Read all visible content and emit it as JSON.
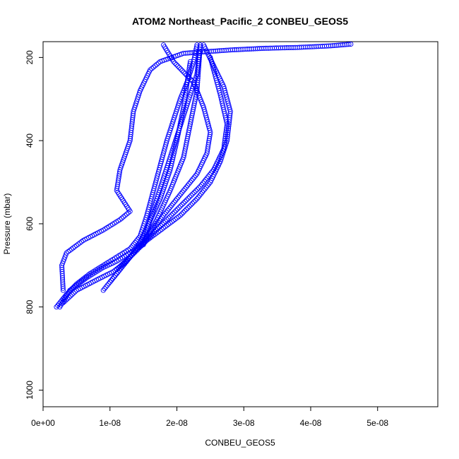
{
  "chart_data": {
    "type": "scatter",
    "title": "ATOM2 Northeast_Pacific_2 CONBEU_GEOS5",
    "xlabel": "CONBEU_GEOS5",
    "ylabel": "Pressure (mbar)",
    "xlim": [
      0,
      5.9e-08
    ],
    "ylim": [
      1040,
      162
    ],
    "y_reversed": true,
    "grid": false,
    "x_ticks": [
      {
        "value": 0,
        "label": "0e+00"
      },
      {
        "value": 1e-08,
        "label": "1e-08"
      },
      {
        "value": 2e-08,
        "label": "2e-08"
      },
      {
        "value": 3e-08,
        "label": "3e-08"
      },
      {
        "value": 4e-08,
        "label": "4e-08"
      },
      {
        "value": 5e-08,
        "label": "5e-08"
      }
    ],
    "y_ticks": [
      {
        "value": 200,
        "label": "200"
      },
      {
        "value": 400,
        "label": "400"
      },
      {
        "value": 600,
        "label": "600"
      },
      {
        "value": 800,
        "label": "800"
      },
      {
        "value": 1000,
        "label": "1000"
      }
    ],
    "marker": "open-circle",
    "color": "#0000ff",
    "series": [
      {
        "x": [
          2e-09,
          3.5e-09,
          5e-09,
          7e-09,
          9e-09,
          1.1e-08,
          1.3e-08,
          1.45e-08,
          1.55e-08,
          1.65e-08,
          1.75e-08,
          1.85e-08,
          1.95e-08,
          2.05e-08,
          2.15e-08,
          2.25e-08,
          2.3e-08
        ],
        "y": [
          800,
          770,
          745,
          720,
          700,
          680,
          660,
          630,
          580,
          520,
          460,
          400,
          350,
          300,
          260,
          210,
          170
        ]
      },
      {
        "x": [
          2.5e-09,
          4e-09,
          6.5e-09,
          9e-09,
          1.1e-08,
          1.3e-08,
          1.5e-08,
          1.7e-08,
          1.9e-08,
          2.1e-08,
          2.2e-08,
          2.3e-08,
          2.35e-08
        ],
        "y": [
          800,
          760,
          730,
          705,
          690,
          670,
          650,
          590,
          520,
          440,
          360,
          280,
          170
        ]
      },
      {
        "x": [
          3e-09,
          5e-09,
          8e-09,
          1.05e-08,
          1.25e-08,
          1.4e-08,
          1.55e-08,
          1.75e-08,
          1.9e-08,
          2e-08,
          2.1e-08,
          2.2e-08
        ],
        "y": [
          790,
          760,
          735,
          715,
          690,
          660,
          610,
          540,
          470,
          400,
          320,
          210
        ]
      },
      {
        "x": [
          9e-09,
          1.1e-08,
          1.3e-08,
          1.55e-08,
          1.8e-08,
          2.05e-08,
          2.3e-08,
          2.5e-08,
          2.65e-08,
          2.75e-08,
          2.8e-08,
          2.7e-08,
          2.55e-08,
          2.4e-08
        ],
        "y": [
          760,
          720,
          680,
          640,
          610,
          580,
          540,
          500,
          450,
          400,
          330,
          270,
          220,
          170
        ]
      },
      {
        "x": [
          1e-08,
          1.2e-08,
          1.4e-08,
          1.6e-08,
          1.85e-08,
          2.1e-08,
          2.35e-08,
          2.55e-08,
          2.7e-08,
          2.75e-08,
          2.65e-08,
          2.5e-08
        ],
        "y": [
          740,
          700,
          660,
          630,
          590,
          550,
          510,
          470,
          420,
          360,
          290,
          200
        ]
      },
      {
        "x": [
          1.1e-08,
          1.3e-08,
          1.5e-08,
          1.7e-08,
          1.9e-08,
          2.1e-08,
          2.3e-08,
          2.45e-08,
          2.5e-08,
          2.4e-08,
          2.25e-08,
          1.95e-08,
          1.8e-08
        ],
        "y": [
          710,
          680,
          640,
          600,
          560,
          520,
          480,
          430,
          380,
          320,
          260,
          210,
          170
        ]
      },
      {
        "x": [
          3e-09,
          2.8e-09,
          3.5e-09,
          6e-09,
          9e-09,
          1.15e-08,
          1.3e-08,
          1.1e-08,
          1.15e-08,
          1.3e-08,
          1.35e-08,
          1.45e-08,
          1.6e-08,
          1.75e-08,
          2.1e-08,
          2.8e-08,
          3.3e-08,
          3.8e-08,
          4.3e-08,
          4.6e-08
        ],
        "y": [
          760,
          700,
          670,
          640,
          615,
          590,
          570,
          520,
          470,
          400,
          330,
          280,
          230,
          210,
          190,
          182,
          178,
          176,
          172,
          168
        ]
      },
      {
        "x": [
          1.5e-08,
          1.6e-08,
          1.7e-08,
          1.8e-08,
          1.9e-08,
          2e-08,
          2.1e-08,
          2.2e-08,
          2.3e-08,
          2.35e-08
        ],
        "y": [
          650,
          590,
          540,
          490,
          440,
          390,
          340,
          290,
          240,
          170
        ]
      }
    ]
  }
}
